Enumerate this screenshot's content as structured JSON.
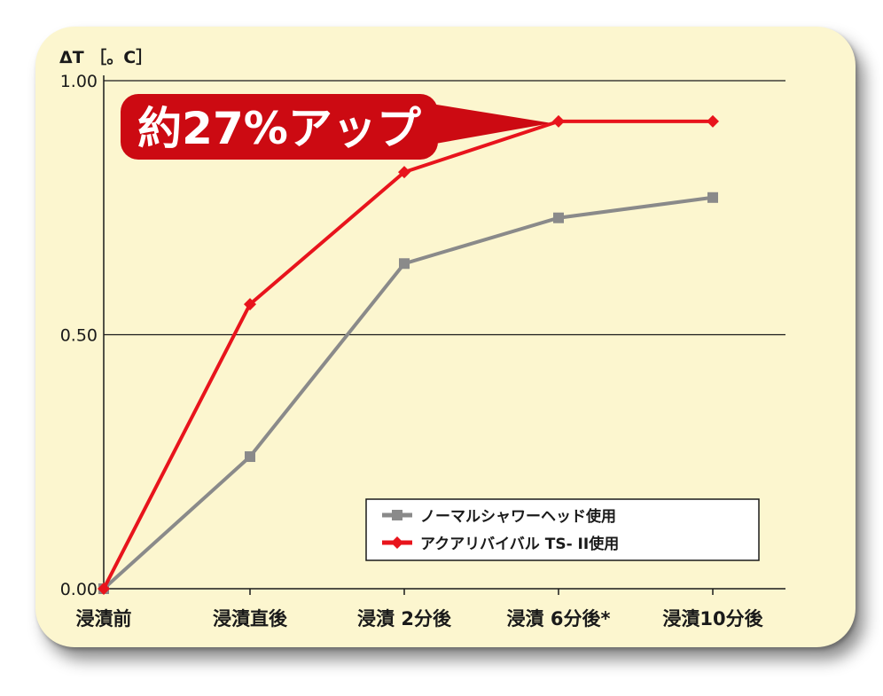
{
  "chart_data": {
    "type": "line",
    "ylabel": "ΔT ［。C］",
    "categories": [
      "浸漬前",
      "浸漬直後",
      "浸漬 2分後",
      "浸漬 6分後*",
      "浸漬10分後"
    ],
    "yticks": [
      "0.00",
      "0.50",
      "1.00"
    ],
    "ylim": [
      0,
      1.0
    ],
    "grid": true,
    "legend_position": "bottom-right",
    "series": [
      {
        "name": "ノーマルシャワーヘッド使用",
        "color": "#8a8a8a",
        "marker": "square",
        "values": [
          0.0,
          0.26,
          0.64,
          0.73,
          0.77
        ]
      },
      {
        "name": "アクアリバイバル TS- II使用",
        "color": "#e8141c",
        "marker": "diamond",
        "values": [
          0.0,
          0.56,
          0.82,
          0.92,
          0.92
        ]
      }
    ],
    "annotation": {
      "text": "約27%アップ",
      "color": "#cc0a12"
    }
  }
}
